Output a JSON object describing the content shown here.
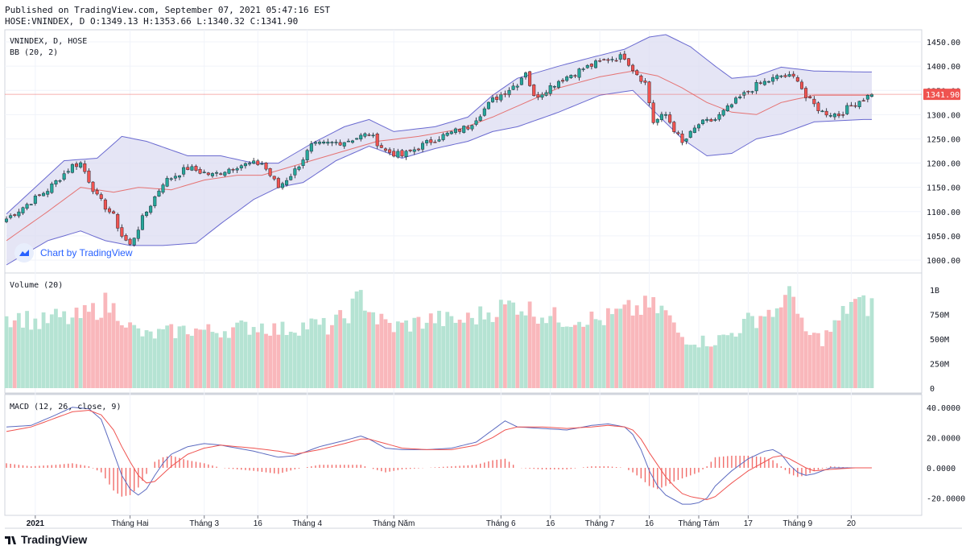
{
  "header": {
    "published": "Published on TradingView.com, September 07, 2021 05:47:16 EST",
    "ohlc": "HOSE:VNINDEX, D O:1349.13 H:1353.66 L:1340.32 C:1341.90"
  },
  "branding": {
    "watermark": "Chart by TradingView",
    "footer": "TradingView"
  },
  "colors": {
    "up": "#26a69a",
    "down": "#ef5350",
    "up_volume": "#b5e3d3",
    "down_volume": "#f9b7bb",
    "bb_fill": "#dcdcf2",
    "bb_band": "#6a6ad0",
    "bb_basis": "#e57373",
    "macd_line": "#5c6bc0",
    "signal_line": "#ef5350",
    "histogram": "#ef5350",
    "price_line": "#ef5350"
  },
  "chart_data": [
    {
      "id": "price",
      "type": "candlestick",
      "legend": [
        "VNINDEX, D, HOSE",
        "BB (20, 2)"
      ],
      "ylim": [
        975,
        1475
      ],
      "y_ticks": [
        "1450.00",
        "1400.00",
        "1350.00",
        "1300.00",
        "1250.00",
        "1200.00",
        "1150.00",
        "1100.00",
        "1050.00",
        "1000.00"
      ],
      "last_price_label": "1341.90",
      "last_price": 1341.9,
      "anchors": [
        [
          0,
          1085
        ],
        [
          10,
          1145
        ],
        [
          16,
          1195
        ],
        [
          18,
          1200
        ],
        [
          22,
          1130
        ],
        [
          26,
          1090
        ],
        [
          28,
          1050
        ],
        [
          30,
          1030
        ],
        [
          33,
          1085
        ],
        [
          38,
          1160
        ],
        [
          44,
          1190
        ],
        [
          50,
          1175
        ],
        [
          56,
          1195
        ],
        [
          62,
          1200
        ],
        [
          66,
          1150
        ],
        [
          70,
          1185
        ],
        [
          74,
          1235
        ],
        [
          82,
          1245
        ],
        [
          88,
          1260
        ],
        [
          92,
          1225
        ],
        [
          96,
          1215
        ],
        [
          104,
          1250
        ],
        [
          112,
          1275
        ],
        [
          118,
          1330
        ],
        [
          124,
          1365
        ],
        [
          126,
          1390
        ],
        [
          128,
          1335
        ],
        [
          134,
          1370
        ],
        [
          140,
          1395
        ],
        [
          146,
          1415
        ],
        [
          150,
          1420
        ],
        [
          152,
          1395
        ],
        [
          155,
          1365
        ],
        [
          157,
          1285
        ],
        [
          160,
          1300
        ],
        [
          164,
          1240
        ],
        [
          168,
          1280
        ],
        [
          172,
          1290
        ],
        [
          178,
          1335
        ],
        [
          182,
          1360
        ],
        [
          188,
          1380
        ],
        [
          192,
          1375
        ],
        [
          194,
          1335
        ],
        [
          198,
          1305
        ],
        [
          202,
          1300
        ],
        [
          206,
          1325
        ],
        [
          210,
          1342
        ]
      ],
      "bb_upper": [
        [
          0,
          1095
        ],
        [
          14,
          1205
        ],
        [
          22,
          1210
        ],
        [
          28,
          1255
        ],
        [
          34,
          1245
        ],
        [
          44,
          1215
        ],
        [
          52,
          1215
        ],
        [
          60,
          1200
        ],
        [
          66,
          1200
        ],
        [
          74,
          1240
        ],
        [
          82,
          1275
        ],
        [
          88,
          1290
        ],
        [
          94,
          1265
        ],
        [
          104,
          1275
        ],
        [
          112,
          1295
        ],
        [
          118,
          1340
        ],
        [
          124,
          1375
        ],
        [
          134,
          1400
        ],
        [
          142,
          1418
        ],
        [
          150,
          1435
        ],
        [
          156,
          1460
        ],
        [
          160,
          1465
        ],
        [
          166,
          1440
        ],
        [
          172,
          1400
        ],
        [
          176,
          1375
        ],
        [
          182,
          1380
        ],
        [
          188,
          1398
        ],
        [
          196,
          1390
        ],
        [
          208,
          1388
        ]
      ],
      "bb_lower": [
        [
          0,
          990
        ],
        [
          10,
          1040
        ],
        [
          18,
          1060
        ],
        [
          24,
          1040
        ],
        [
          30,
          1030
        ],
        [
          38,
          1030
        ],
        [
          46,
          1035
        ],
        [
          52,
          1075
        ],
        [
          60,
          1125
        ],
        [
          66,
          1150
        ],
        [
          72,
          1160
        ],
        [
          80,
          1205
        ],
        [
          88,
          1235
        ],
        [
          96,
          1210
        ],
        [
          104,
          1230
        ],
        [
          112,
          1245
        ],
        [
          118,
          1265
        ],
        [
          124,
          1275
        ],
        [
          134,
          1305
        ],
        [
          144,
          1340
        ],
        [
          152,
          1350
        ],
        [
          158,
          1300
        ],
        [
          164,
          1250
        ],
        [
          170,
          1215
        ],
        [
          176,
          1220
        ],
        [
          182,
          1250
        ],
        [
          188,
          1260
        ],
        [
          196,
          1285
        ],
        [
          208,
          1290
        ]
      ],
      "bb_basis": [
        [
          0,
          1040
        ],
        [
          10,
          1100
        ],
        [
          18,
          1150
        ],
        [
          26,
          1140
        ],
        [
          32,
          1150
        ],
        [
          40,
          1145
        ],
        [
          48,
          1165
        ],
        [
          56,
          1175
        ],
        [
          62,
          1175
        ],
        [
          70,
          1195
        ],
        [
          80,
          1220
        ],
        [
          90,
          1245
        ],
        [
          100,
          1255
        ],
        [
          110,
          1270
        ],
        [
          118,
          1295
        ],
        [
          126,
          1325
        ],
        [
          134,
          1355
        ],
        [
          144,
          1378
        ],
        [
          152,
          1390
        ],
        [
          158,
          1380
        ],
        [
          164,
          1355
        ],
        [
          170,
          1325
        ],
        [
          176,
          1305
        ],
        [
          182,
          1300
        ],
        [
          188,
          1325
        ],
        [
          196,
          1340
        ],
        [
          208,
          1340
        ]
      ]
    },
    {
      "id": "volume",
      "type": "bar",
      "legend": "Volume (20)",
      "ylim": [
        0,
        1100000000
      ],
      "y_ticks": [
        "1B",
        "750M",
        "500M",
        "250M",
        "0"
      ],
      "anchors": [
        [
          0,
          730
        ],
        [
          4,
          720
        ],
        [
          8,
          660
        ],
        [
          12,
          720
        ],
        [
          16,
          700
        ],
        [
          20,
          760
        ],
        [
          24,
          860
        ],
        [
          28,
          750
        ],
        [
          30,
          620
        ],
        [
          34,
          530
        ],
        [
          38,
          560
        ],
        [
          44,
          600
        ],
        [
          50,
          580
        ],
        [
          56,
          610
        ],
        [
          62,
          640
        ],
        [
          66,
          590
        ],
        [
          70,
          620
        ],
        [
          74,
          650
        ],
        [
          78,
          620
        ],
        [
          82,
          720
        ],
        [
          86,
          930
        ],
        [
          88,
          840
        ],
        [
          90,
          700
        ],
        [
          94,
          620
        ],
        [
          100,
          670
        ],
        [
          104,
          710
        ],
        [
          108,
          680
        ],
        [
          112,
          700
        ],
        [
          116,
          760
        ],
        [
          120,
          820
        ],
        [
          124,
          860
        ],
        [
          128,
          780
        ],
        [
          132,
          730
        ],
        [
          136,
          700
        ],
        [
          140,
          720
        ],
        [
          144,
          690
        ],
        [
          148,
          750
        ],
        [
          152,
          800
        ],
        [
          156,
          830
        ],
        [
          160,
          780
        ],
        [
          162,
          620
        ],
        [
          164,
          520
        ],
        [
          168,
          480
        ],
        [
          172,
          480
        ],
        [
          176,
          560
        ],
        [
          180,
          680
        ],
        [
          184,
          760
        ],
        [
          186,
          800
        ],
        [
          188,
          730
        ],
        [
          190,
          1180
        ],
        [
          192,
          700
        ],
        [
          194,
          560
        ],
        [
          198,
          500
        ],
        [
          202,
          680
        ],
        [
          205,
          890
        ],
        [
          208,
          840
        ]
      ]
    },
    {
      "id": "macd",
      "type": "line+histogram",
      "legend": "MACD (12, 26, close, 9)",
      "ylim": [
        -25,
        42
      ],
      "y_ticks": [
        "40.0000",
        "20.0000",
        "0.0000",
        "-20.0000"
      ],
      "macd": [
        [
          0,
          27
        ],
        [
          6,
          28
        ],
        [
          12,
          35
        ],
        [
          16,
          40
        ],
        [
          20,
          39
        ],
        [
          23,
          32
        ],
        [
          26,
          10
        ],
        [
          28,
          -5
        ],
        [
          30,
          -14
        ],
        [
          32,
          -18
        ],
        [
          34,
          -14
        ],
        [
          36,
          -5
        ],
        [
          38,
          3
        ],
        [
          40,
          9
        ],
        [
          44,
          14
        ],
        [
          48,
          16
        ],
        [
          52,
          15
        ],
        [
          56,
          13
        ],
        [
          60,
          11
        ],
        [
          66,
          7
        ],
        [
          70,
          8
        ],
        [
          76,
          14
        ],
        [
          82,
          18
        ],
        [
          86,
          21
        ],
        [
          88,
          19
        ],
        [
          92,
          13
        ],
        [
          96,
          12
        ],
        [
          102,
          12
        ],
        [
          108,
          13
        ],
        [
          114,
          17
        ],
        [
          118,
          25
        ],
        [
          121,
          31
        ],
        [
          124,
          27
        ],
        [
          130,
          26
        ],
        [
          136,
          25
        ],
        [
          142,
          28
        ],
        [
          146,
          29
        ],
        [
          150,
          27
        ],
        [
          152,
          22
        ],
        [
          154,
          12
        ],
        [
          156,
          -2
        ],
        [
          158,
          -12
        ],
        [
          160,
          -18
        ],
        [
          162,
          -21
        ],
        [
          164,
          -24
        ],
        [
          166,
          -24
        ],
        [
          168,
          -23
        ],
        [
          170,
          -20
        ],
        [
          172,
          -12
        ],
        [
          176,
          -2
        ],
        [
          180,
          6
        ],
        [
          184,
          11
        ],
        [
          186,
          12
        ],
        [
          188,
          9
        ],
        [
          190,
          2
        ],
        [
          192,
          -3
        ],
        [
          194,
          -5
        ],
        [
          196,
          -4
        ],
        [
          200,
          0
        ],
        [
          206,
          0
        ]
      ],
      "signal": [
        [
          0,
          24
        ],
        [
          6,
          27
        ],
        [
          12,
          33
        ],
        [
          16,
          37
        ],
        [
          20,
          38
        ],
        [
          23,
          35
        ],
        [
          26,
          25
        ],
        [
          28,
          14
        ],
        [
          30,
          4
        ],
        [
          32,
          -5
        ],
        [
          34,
          -10
        ],
        [
          36,
          -9
        ],
        [
          38,
          -4
        ],
        [
          40,
          1
        ],
        [
          44,
          9
        ],
        [
          48,
          13
        ],
        [
          52,
          15
        ],
        [
          56,
          14
        ],
        [
          60,
          13
        ],
        [
          66,
          11
        ],
        [
          70,
          9
        ],
        [
          76,
          12
        ],
        [
          82,
          16
        ],
        [
          86,
          19
        ],
        [
          88,
          19
        ],
        [
          92,
          16
        ],
        [
          96,
          13
        ],
        [
          102,
          12
        ],
        [
          108,
          12
        ],
        [
          114,
          15
        ],
        [
          118,
          20
        ],
        [
          121,
          25
        ],
        [
          124,
          27
        ],
        [
          130,
          27
        ],
        [
          136,
          26
        ],
        [
          142,
          27
        ],
        [
          146,
          28
        ],
        [
          150,
          27
        ],
        [
          152,
          25
        ],
        [
          154,
          19
        ],
        [
          156,
          10
        ],
        [
          158,
          2
        ],
        [
          160,
          -6
        ],
        [
          162,
          -12
        ],
        [
          164,
          -17
        ],
        [
          166,
          -19
        ],
        [
          168,
          -20
        ],
        [
          170,
          -21
        ],
        [
          172,
          -19
        ],
        [
          176,
          -10
        ],
        [
          180,
          -2
        ],
        [
          184,
          4
        ],
        [
          186,
          7
        ],
        [
          188,
          8
        ],
        [
          190,
          6
        ],
        [
          192,
          3
        ],
        [
          194,
          0
        ],
        [
          196,
          -2
        ],
        [
          200,
          -1
        ],
        [
          206,
          0
        ]
      ]
    }
  ],
  "x_axis": {
    "labels": [
      {
        "text": "2021",
        "idx": 7,
        "bold": true
      },
      {
        "text": "Tháng Hai",
        "idx": 30
      },
      {
        "text": "Tháng 3",
        "idx": 48
      },
      {
        "text": "16",
        "idx": 61
      },
      {
        "text": "Tháng 4",
        "idx": 73
      },
      {
        "text": "Tháng Năm",
        "idx": 94
      },
      {
        "text": "Tháng 6",
        "idx": 120
      },
      {
        "text": "16",
        "idx": 132
      },
      {
        "text": "Tháng 7",
        "idx": 144
      },
      {
        "text": "16",
        "idx": 156
      },
      {
        "text": "Tháng Tám",
        "idx": 168
      },
      {
        "text": "17",
        "idx": 180
      },
      {
        "text": "Tháng 9",
        "idx": 192
      },
      {
        "text": "20",
        "idx": 205
      }
    ]
  }
}
